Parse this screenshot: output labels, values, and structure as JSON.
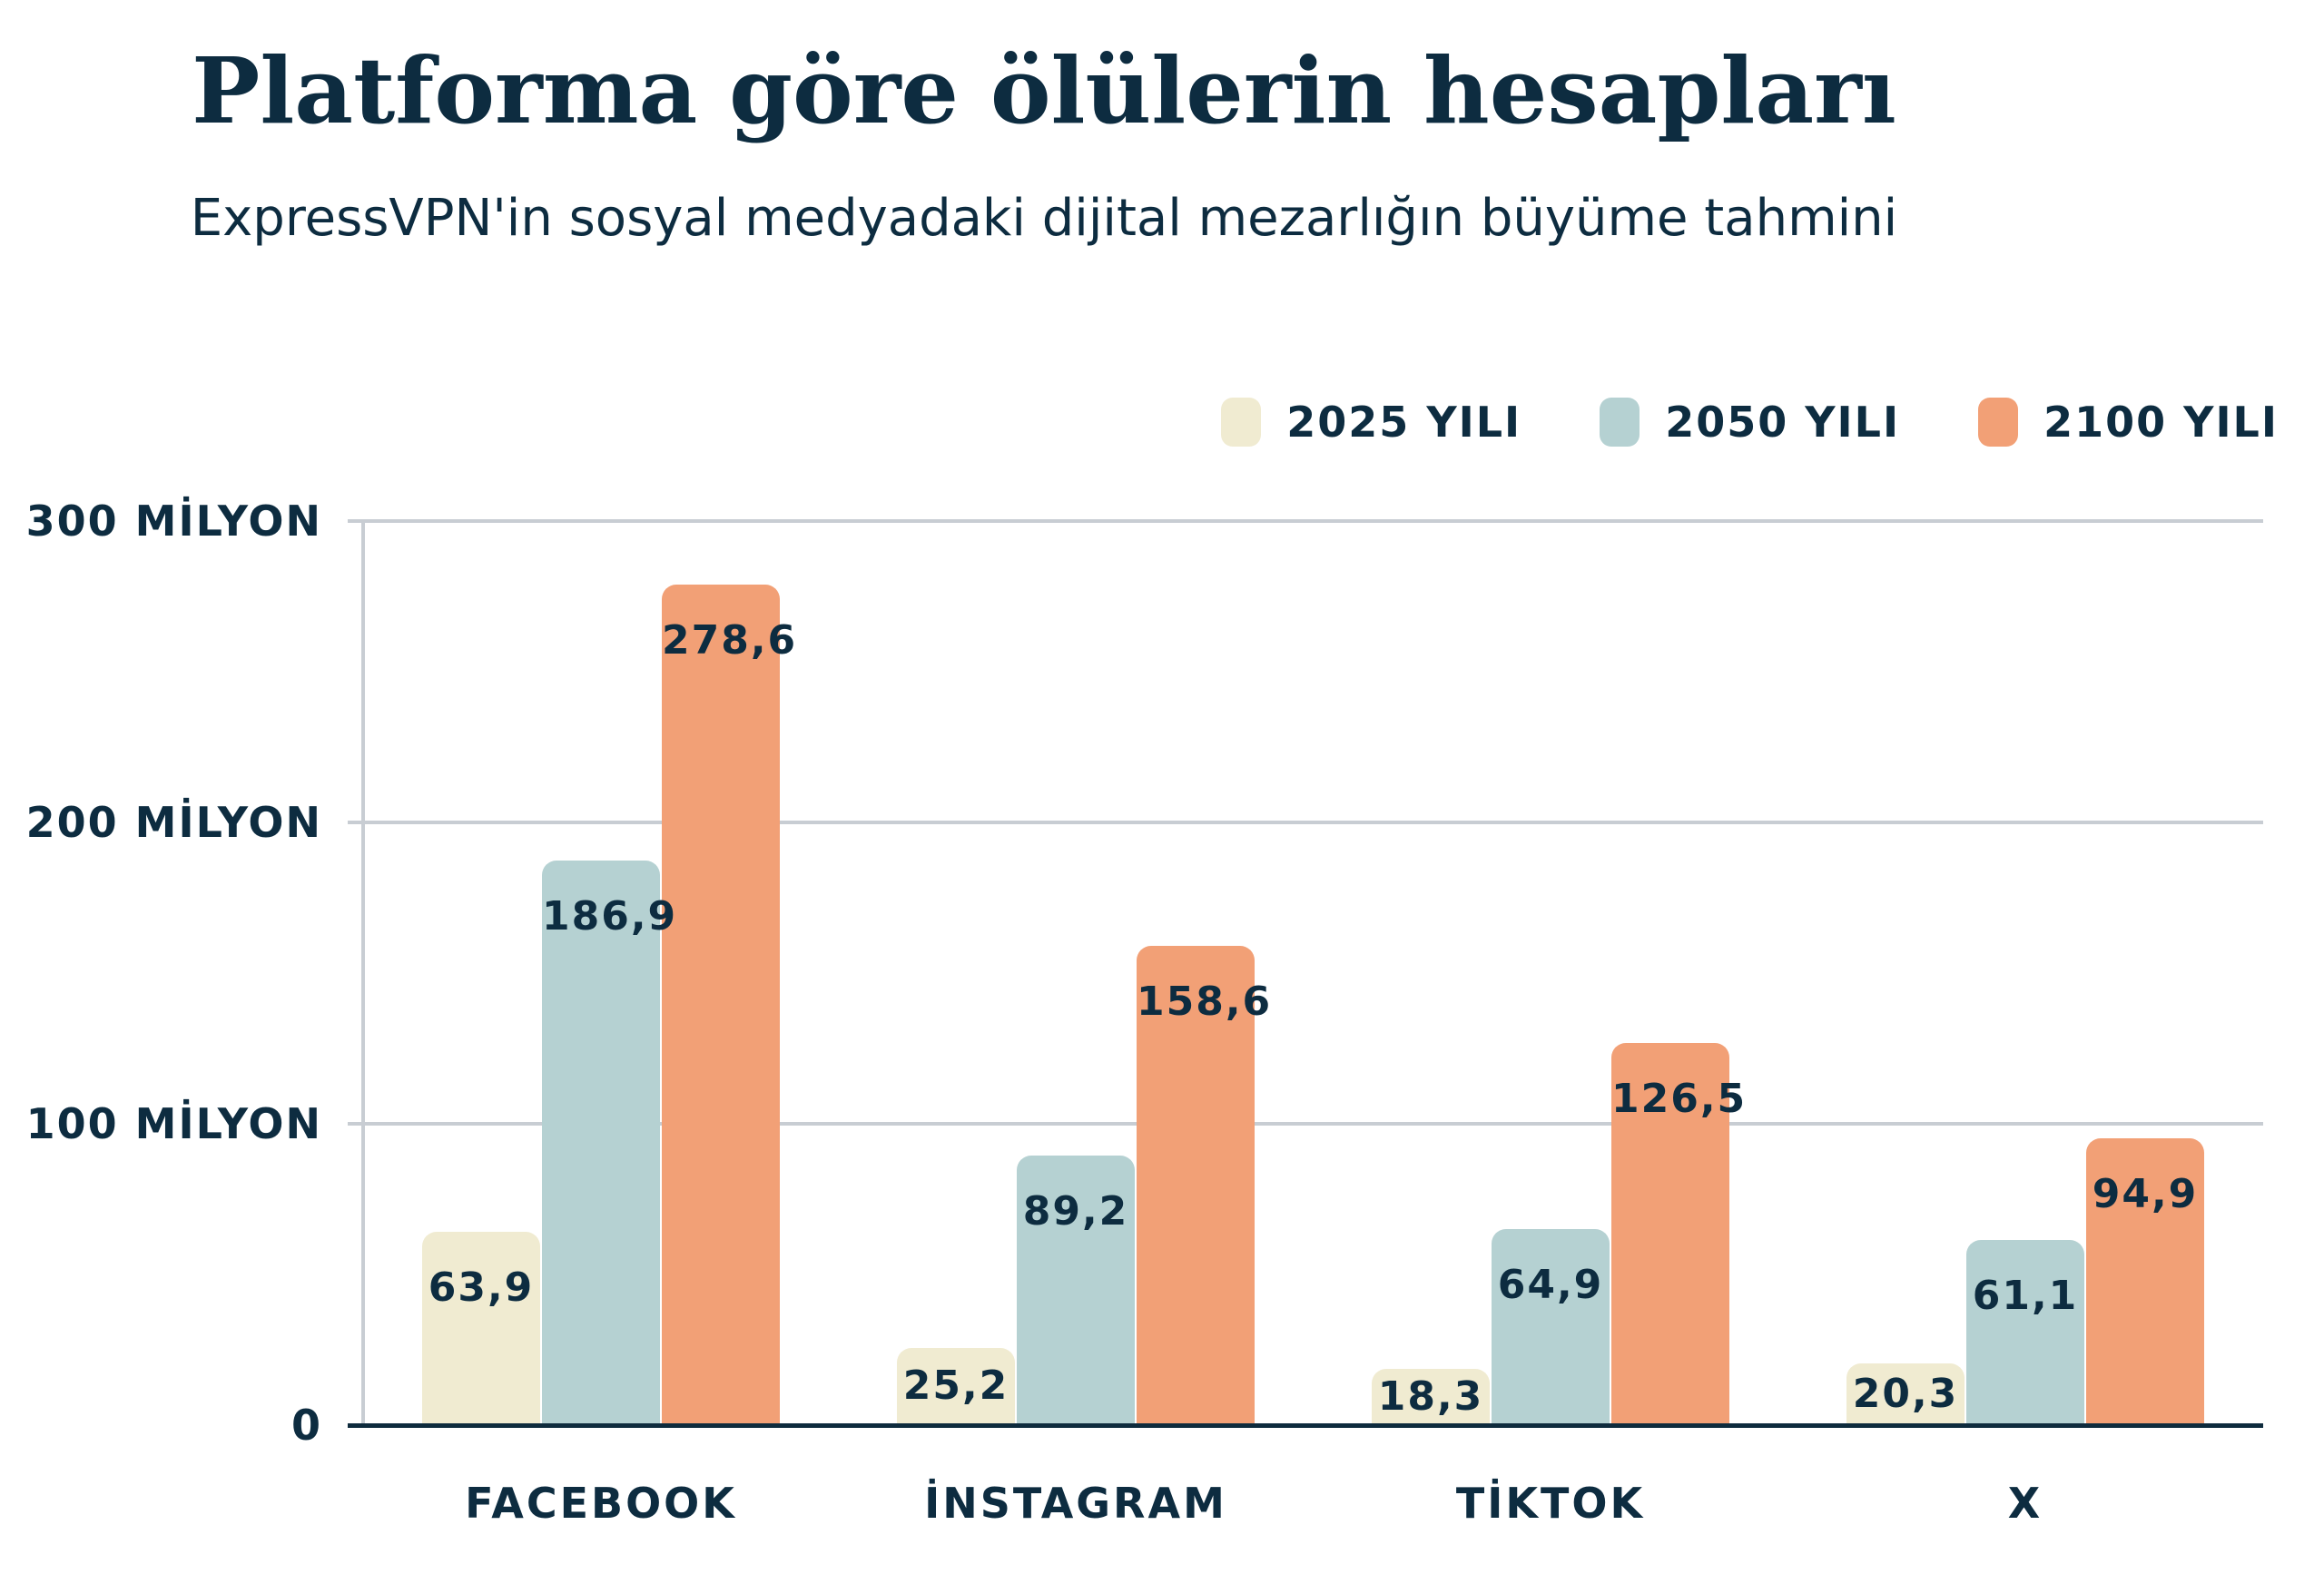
{
  "title": "Platforma göre ölülerin hesapları",
  "subtitle": "ExpressVPN'in sosyal medyadaki dijital mezarlığın büyüme tahmini",
  "legend": [
    {
      "label": "2025 YILI",
      "color": "#F0EBD1"
    },
    {
      "label": "2050 YILI",
      "color": "#B5D1D2"
    },
    {
      "label": "2100 YILI",
      "color": "#F2A076"
    }
  ],
  "colors": {
    "text_navy": "#0D2C40",
    "axis_navy": "#0E2B3D",
    "gridline_gray": "#C8CDD3",
    "background": "#FFFFFF",
    "series_2025": "#F0EBD1",
    "series_2050": "#B5D1D2",
    "series_2100": "#F2A076"
  },
  "chart_data": {
    "type": "bar",
    "title": "Platforma göre ölülerin hesapları",
    "subtitle": "ExpressVPN'in sosyal medyadaki dijital mezarlığın büyüme tahmini",
    "unit": "MİLYON",
    "grid": true,
    "legend_position": "top-right",
    "categories": [
      {
        "label": "FACEBOOK",
        "slug": "facebook"
      },
      {
        "label": "İNSTAGRAM",
        "slug": "instagram"
      },
      {
        "label": "TİKTOK",
        "slug": "tiktok"
      },
      {
        "label": "X",
        "slug": "x"
      }
    ],
    "series": [
      {
        "name": "2025 YILI",
        "slug": "y2025",
        "color": "#F0EBD1",
        "values": [
          63.9,
          25.2,
          18.3,
          20.3
        ],
        "value_labels": [
          "63,9",
          "25,2",
          "18,3",
          "20,3"
        ]
      },
      {
        "name": "2050 YILI",
        "slug": "y2050",
        "color": "#B5D1D2",
        "values": [
          186.9,
          89.2,
          64.9,
          61.1
        ],
        "value_labels": [
          "186,9",
          "89,2",
          "64,9",
          "61,1"
        ]
      },
      {
        "name": "2100 YILI",
        "slug": "y2100",
        "color": "#F2A076",
        "values": [
          278.6,
          158.6,
          126.5,
          94.9
        ],
        "value_labels": [
          "278,6",
          "158,6",
          "126,5",
          "94,9"
        ]
      }
    ],
    "y_axis": {
      "min": 0,
      "max": 300,
      "ticks": [
        {
          "value": 0,
          "label": "0"
        },
        {
          "value": 100,
          "label": "100 MİLYON"
        },
        {
          "value": 200,
          "label": "200 MİLYON"
        },
        {
          "value": 300,
          "label": "300 MİLYON"
        }
      ]
    }
  }
}
